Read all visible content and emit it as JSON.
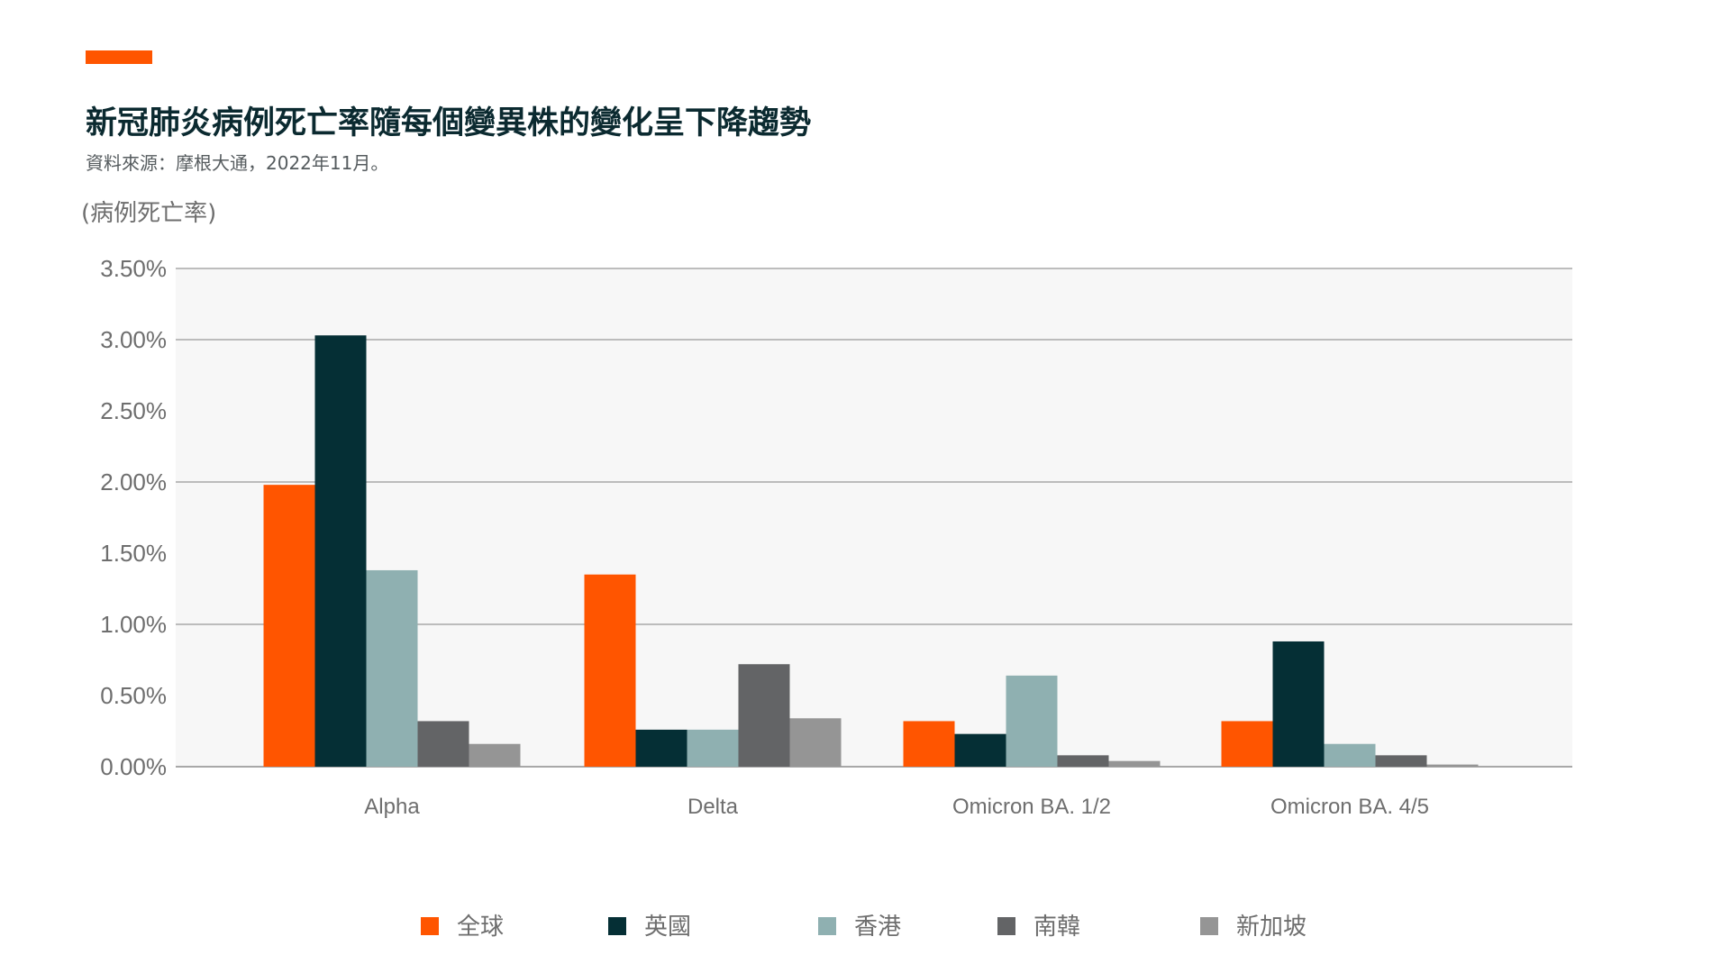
{
  "header": {
    "title": "新冠肺炎病例死亡率隨每個變異株的變化呈下降趨勢",
    "source": "資料來源：摩根大通，2022年11月。"
  },
  "colors": {
    "accent": "#ff5500",
    "plot_bg": "#f7f7f7",
    "grid": "#a8a8a8",
    "axis_text": "#6e6e6e",
    "title_text": "#0b2a30"
  },
  "chart_data": {
    "type": "bar",
    "ylabel": "(病例死亡率)",
    "xlabel": "",
    "ylim": [
      0,
      3.5
    ],
    "yticks": [
      "0.00%",
      "0.50%",
      "1.00%",
      "1.50%",
      "2.00%",
      "2.50%",
      "3.00%",
      "3.50%"
    ],
    "categories": [
      "Alpha",
      "Delta",
      "Omicron BA. 1/2",
      "Omicron BA. 4/5"
    ],
    "series": [
      {
        "name": "全球",
        "color": "#ff5500",
        "values": [
          1.98,
          1.35,
          0.32,
          0.32
        ]
      },
      {
        "name": "英國",
        "color": "#052f35",
        "values": [
          3.03,
          0.26,
          0.23,
          0.88
        ]
      },
      {
        "name": "香港",
        "color": "#8fb0b1",
        "values": [
          1.38,
          0.26,
          0.64,
          0.16
        ]
      },
      {
        "name": "南韓",
        "color": "#636466",
        "values": [
          0.32,
          0.72,
          0.08,
          0.08
        ]
      },
      {
        "name": "新加坡",
        "color": "#959595",
        "values": [
          0.16,
          0.34,
          0.04,
          0.015
        ]
      }
    ],
    "grid": true,
    "legend_position": "bottom"
  }
}
